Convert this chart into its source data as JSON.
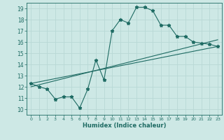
{
  "title": "",
  "xlabel": "Humidex (Indice chaleur)",
  "ylabel": "",
  "bg_color": "#cde8e5",
  "line_color": "#1e6b63",
  "grid_color": "#b8d8d5",
  "xlim": [
    -0.5,
    23.5
  ],
  "ylim": [
    9.5,
    19.5
  ],
  "xticks": [
    0,
    1,
    2,
    3,
    4,
    5,
    6,
    7,
    8,
    9,
    10,
    11,
    12,
    13,
    14,
    15,
    16,
    17,
    18,
    19,
    20,
    21,
    22,
    23
  ],
  "yticks": [
    10,
    11,
    12,
    13,
    14,
    15,
    16,
    17,
    18,
    19
  ],
  "series1_x": [
    0,
    1,
    2,
    3,
    4,
    5,
    6,
    7,
    8,
    9,
    10,
    11,
    12,
    13,
    14,
    15,
    16,
    17,
    18,
    19,
    20,
    21,
    22,
    23
  ],
  "series1_y": [
    12.3,
    12.0,
    11.8,
    10.9,
    11.1,
    11.1,
    10.1,
    11.8,
    14.4,
    12.6,
    17.0,
    18.0,
    17.7,
    19.1,
    19.1,
    18.8,
    17.5,
    17.5,
    16.5,
    16.5,
    16.0,
    15.9,
    15.8,
    15.6
  ],
  "series2_x": [
    0,
    23
  ],
  "series2_y": [
    12.3,
    15.6
  ],
  "series3_x": [
    0,
    23
  ],
  "series3_y": [
    12.0,
    16.2
  ]
}
